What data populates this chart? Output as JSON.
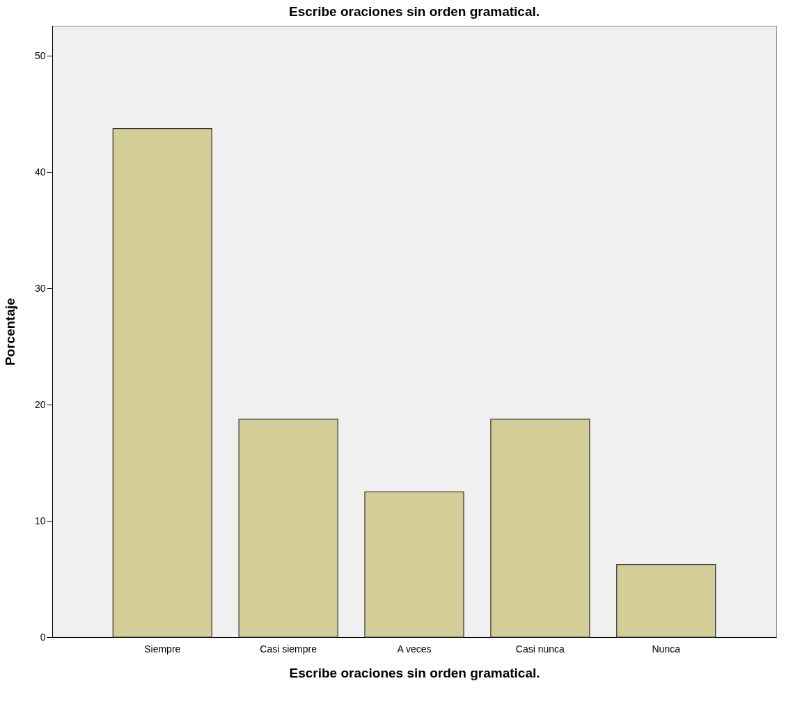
{
  "chart_data": {
    "type": "bar",
    "title": "Escribe oraciones sin orden gramatical.",
    "xlabel": "Escribe oraciones sin orden gramatical.",
    "ylabel": "Porcentaje",
    "categories": [
      "Siempre",
      "Casi siempre",
      "A veces",
      "Casi nunca",
      "Nunca"
    ],
    "values": [
      43.75,
      18.75,
      12.5,
      18.75,
      6.25
    ],
    "color": "#d3ce97",
    "ylim": [
      0,
      52.6
    ],
    "yticks": [
      0,
      10,
      20,
      30,
      40,
      50
    ],
    "grid": false
  }
}
